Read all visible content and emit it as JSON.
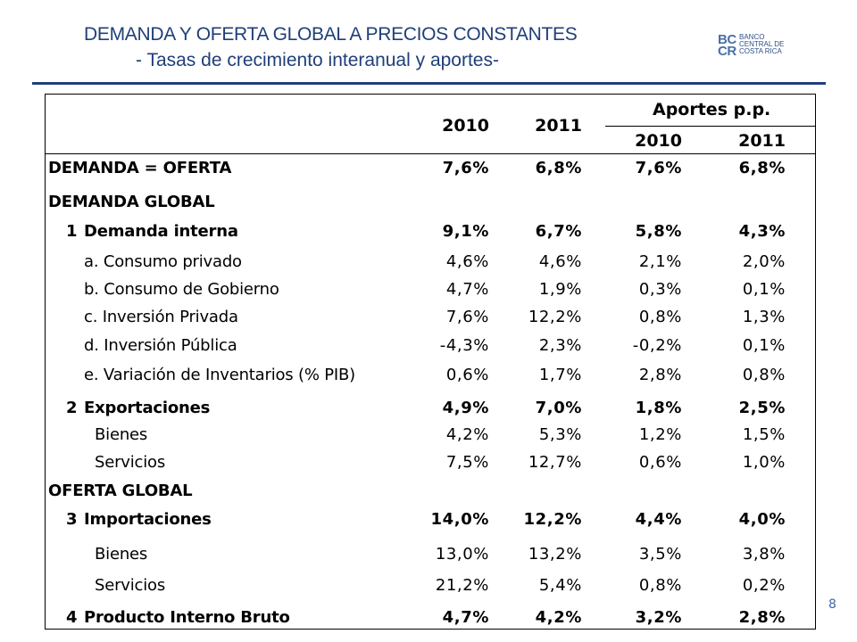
{
  "slide": {
    "title_line1": "DEMANDA Y OFERTA GLOBAL A PRECIOS CONSTANTES",
    "title_line2": "- Tasas de crecimiento interanual  y aportes-",
    "page_number": "8"
  },
  "logo": {
    "letters_top": "BC",
    "letters_bottom": "CR",
    "text_line1": "BANCO",
    "text_line2": "CENTRAL DE",
    "text_line3": "COSTA RICA"
  },
  "colors": {
    "title": "#1f3f7a",
    "rule": "#1f3f7a",
    "page_number": "#3f66a8"
  },
  "table": {
    "headers": {
      "year1": "2010",
      "year2": "2011",
      "aportes": "Aportes p.p.",
      "aportes_year1": "2010",
      "aportes_year2": "2011"
    },
    "rows": [
      {
        "index": "",
        "label": "DEMANDA = OFERTA",
        "bold": true,
        "values": [
          "7,6%",
          "6,8%",
          "7,6%",
          "6,8%"
        ]
      },
      {
        "index": "",
        "label": "DEMANDA GLOBAL",
        "bold": true,
        "values": [
          "",
          "",
          "",
          ""
        ]
      },
      {
        "index": "1",
        "label": "Demanda interna",
        "bold": true,
        "values": [
          "9,1%",
          "6,7%",
          "5,8%",
          "4,3%"
        ]
      },
      {
        "index": "",
        "label": "a. Consumo privado",
        "bold": false,
        "values": [
          "4,6%",
          "4,6%",
          "2,1%",
          "2,0%"
        ]
      },
      {
        "index": "",
        "label": "b. Consumo de Gobierno",
        "bold": false,
        "values": [
          "4,7%",
          "1,9%",
          "0,3%",
          "0,1%"
        ]
      },
      {
        "index": "",
        "label": "c. Inversión Privada",
        "bold": false,
        "values": [
          "7,6%",
          "12,2%",
          "0,8%",
          "1,3%"
        ]
      },
      {
        "index": "",
        "label": "d. Inversión Pública",
        "bold": false,
        "values": [
          "-4,3%",
          "2,3%",
          "-0,2%",
          "0,1%"
        ]
      },
      {
        "index": "",
        "label": "e. Variación de Inventarios (% PIB)",
        "bold": false,
        "values": [
          "0,6%",
          "1,7%",
          "2,8%",
          "0,8%"
        ]
      },
      {
        "index": "2",
        "label": "Exportaciones",
        "bold": true,
        "values": [
          "4,9%",
          "7,0%",
          "1,8%",
          "2,5%"
        ]
      },
      {
        "index": "",
        "label": "Bienes",
        "bold": false,
        "values": [
          "4,2%",
          "5,3%",
          "1,2%",
          "1,5%"
        ]
      },
      {
        "index": "",
        "label": "Servicios",
        "bold": false,
        "values": [
          "7,5%",
          "12,7%",
          "0,6%",
          "1,0%"
        ]
      },
      {
        "index": "",
        "label": "OFERTA GLOBAL",
        "bold": true,
        "values": [
          "",
          "",
          "",
          ""
        ]
      },
      {
        "index": "3",
        "label": "Importaciones",
        "bold": true,
        "values": [
          "14,0%",
          "12,2%",
          "4,4%",
          "4,0%"
        ]
      },
      {
        "index": "",
        "label": "Bienes",
        "bold": false,
        "values": [
          "13,0%",
          "13,2%",
          "3,5%",
          "3,8%"
        ]
      },
      {
        "index": "",
        "label": "Servicios",
        "bold": false,
        "values": [
          "21,2%",
          "5,4%",
          "0,8%",
          "0,2%"
        ]
      },
      {
        "index": "4",
        "label": "Producto Interno Bruto",
        "bold": true,
        "values": [
          "4,7%",
          "4,2%",
          "3,2%",
          "2,8%"
        ]
      }
    ]
  }
}
